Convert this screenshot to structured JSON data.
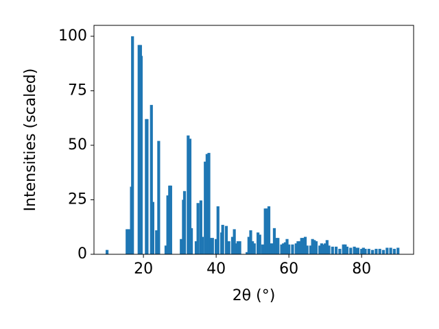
{
  "chart_data": {
    "type": "bar",
    "x_label": "2θ (°)",
    "y_label": "Intensities (scaled)",
    "color": "#1f77b4",
    "x": [
      10,
      15.5,
      16,
      16.7,
      17,
      18.8,
      19.2,
      19.4,
      20.8,
      21,
      22.2,
      22.6,
      23.6,
      24.2,
      26.2,
      26.7,
      27.2,
      27.5,
      30.4,
      31,
      31.3,
      32.3,
      32.8,
      33.2,
      34.5,
      35,
      35.8,
      36.2,
      37,
      37.5,
      38,
      38.5,
      39,
      40,
      40.5,
      41.5,
      41.8,
      42.8,
      43.5,
      44.5,
      45,
      45.5,
      46,
      46.5,
      48.5,
      49,
      49.5,
      50,
      50.5,
      51.5,
      52,
      52.8,
      53.5,
      54,
      54.5,
      55,
      55.5,
      56,
      56.5,
      57,
      58,
      58.5,
      59,
      59.5,
      60,
      61,
      62,
      62.5,
      63,
      63.5,
      64,
      64.5,
      65,
      66,
      66.5,
      67,
      67.5,
      68.5,
      69,
      69.5,
      70,
      70.5,
      71,
      72,
      73,
      74,
      75,
      75.5,
      76,
      77,
      78,
      78.5,
      79,
      80,
      80.5,
      81,
      82,
      83,
      84,
      85,
      86,
      87,
      88,
      89,
      90
    ],
    "values": [
      2,
      11.5,
      11.5,
      31,
      100,
      96,
      96,
      91,
      62,
      62,
      68.5,
      24,
      11,
      52,
      4,
      27,
      31.5,
      31.5,
      7,
      25,
      29,
      54.5,
      53,
      12,
      6,
      23.5,
      24.7,
      8,
      42.5,
      46,
      46.5,
      7.5,
      7.5,
      7,
      22,
      10,
      13.5,
      13,
      6,
      8,
      11.5,
      5,
      6,
      6,
      1,
      8,
      11,
      6,
      5,
      10,
      9,
      4.5,
      21,
      21,
      22,
      5,
      5,
      12,
      7.5,
      7.5,
      4.5,
      5,
      5.5,
      7,
      4.5,
      4.5,
      5,
      6,
      6,
      7.5,
      7.5,
      8,
      4,
      4,
      7,
      6.5,
      6,
      4,
      5,
      4.5,
      5,
      6.5,
      4,
      3.5,
      3.5,
      2.5,
      4.5,
      4.5,
      3.5,
      3,
      3.5,
      3,
      3,
      2.5,
      3,
      2.5,
      2.5,
      2,
      2.5,
      2.5,
      2,
      3,
      3,
      2.5,
      3
    ],
    "xlim": [
      6.4,
      94.3
    ],
    "ylim": [
      0,
      105
    ],
    "xticks": [
      20,
      40,
      60,
      80
    ],
    "yticks": [
      0,
      25,
      50,
      75,
      100
    ]
  }
}
